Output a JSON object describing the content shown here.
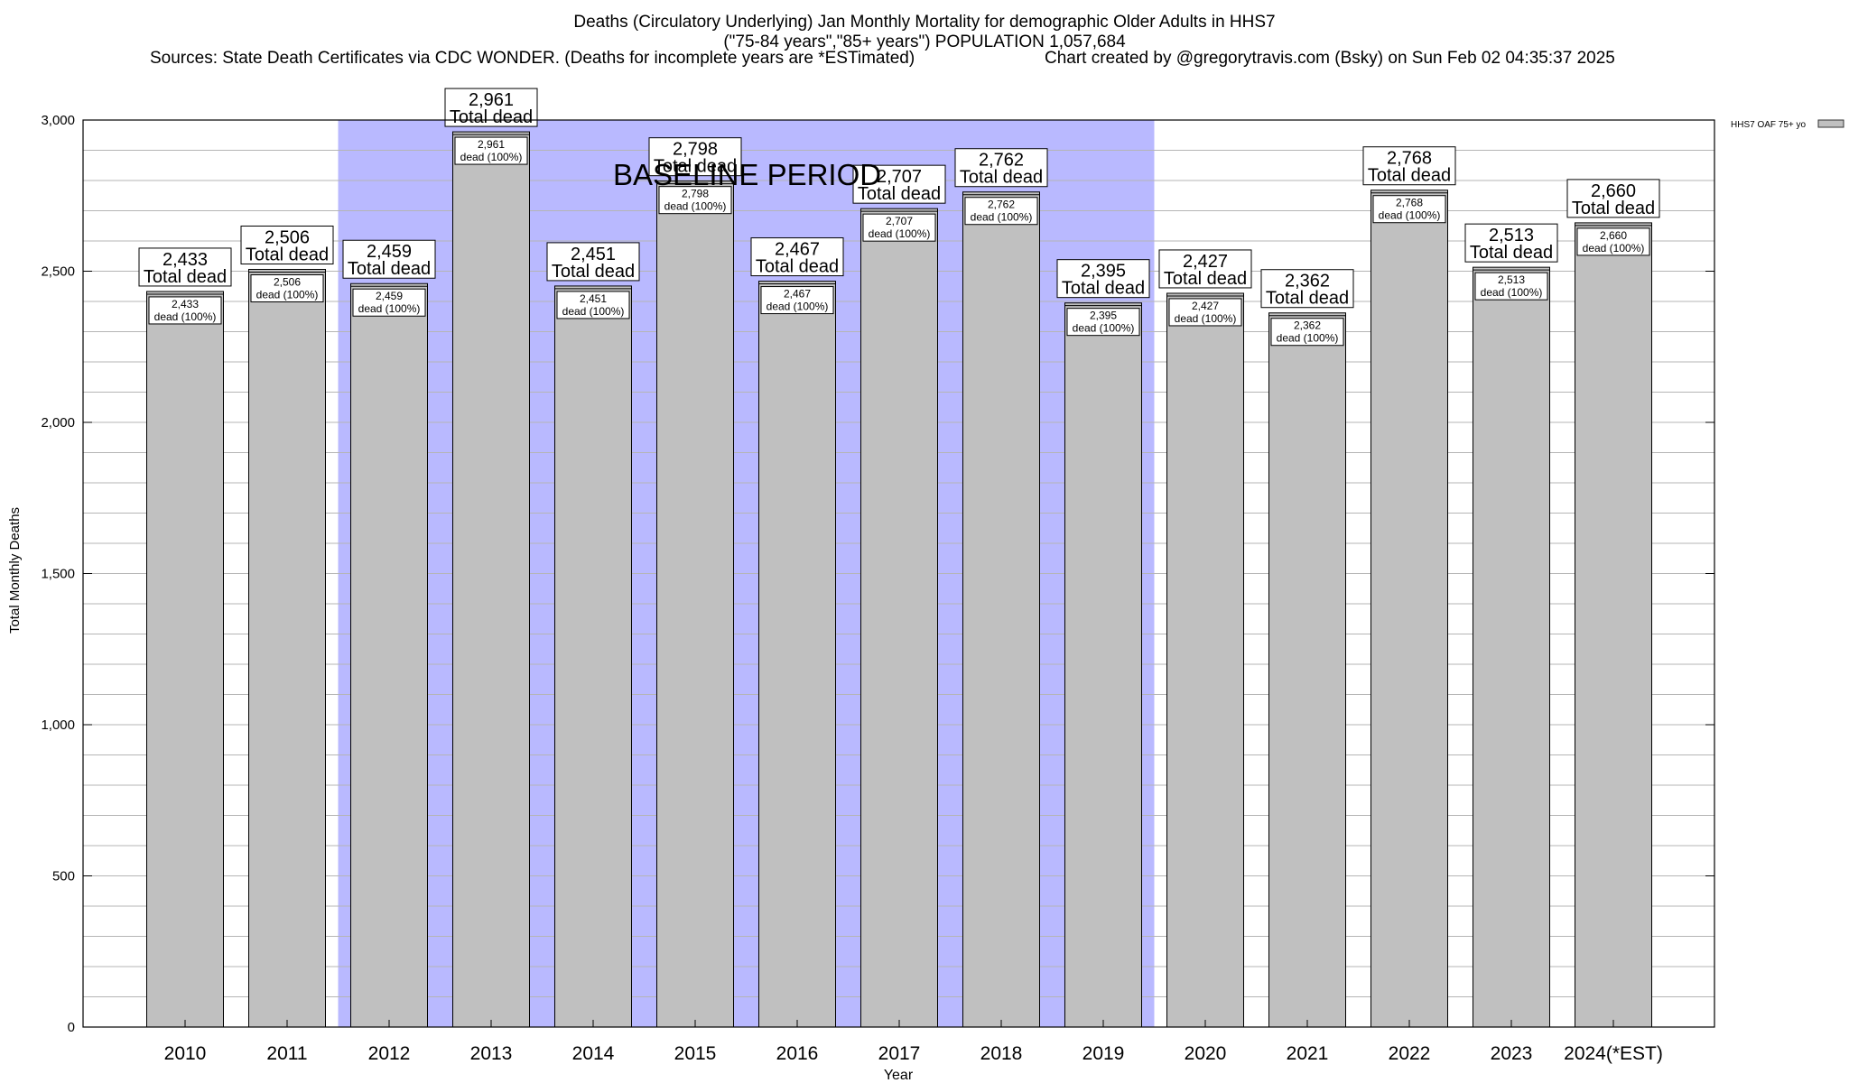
{
  "chart_data": {
    "type": "bar",
    "title": "Deaths (Circulatory Underlying) Jan Monthly Mortality for demographic Older Adults in HHS7",
    "subtitle": "(\"75-84 years\",\"85+ years\") POPULATION 1,057,684",
    "sources": "Sources: State Death Certificates via CDC WONDER. (Deaths for incomplete years are *ESTimated)",
    "credit": "Chart created by @gregorytravis.com (Bsky) on Sun Feb 02 04:35:37 2025",
    "xlabel": "Year",
    "ylabel": "Total Monthly Deaths",
    "ylim": [
      0,
      3000
    ],
    "yticks": [
      0,
      500,
      1000,
      1500,
      2000,
      2500,
      3000
    ],
    "ytick_labels": [
      "0",
      "500",
      "1,000",
      "1,500",
      "2,000",
      "2,500",
      "3,000"
    ],
    "minor_grid_step": 100,
    "legend_label": "HHS7 OAF 75+ yo",
    "legend_position": "top-right",
    "baseline_label": "BASELINE PERIOD",
    "baseline_range": [
      "2012",
      "2019"
    ],
    "bar_color": "#c0c0c0",
    "baseline_color": "#b9b9ff",
    "categories": [
      "2010",
      "2011",
      "2012",
      "2013",
      "2014",
      "2015",
      "2016",
      "2017",
      "2018",
      "2019",
      "2020",
      "2021",
      "2022",
      "2023",
      "2024(*EST)"
    ],
    "values": [
      2433,
      2506,
      2459,
      2961,
      2451,
      2798,
      2467,
      2707,
      2762,
      2395,
      2427,
      2362,
      2768,
      2513,
      2660
    ],
    "value_labels": [
      "2,433",
      "2,506",
      "2,459",
      "2,961",
      "2,451",
      "2,798",
      "2,467",
      "2,707",
      "2,762",
      "2,395",
      "2,427",
      "2,362",
      "2,768",
      "2,513",
      "2,660"
    ],
    "total_label": "Total dead",
    "inner_label": "dead (100%)"
  }
}
